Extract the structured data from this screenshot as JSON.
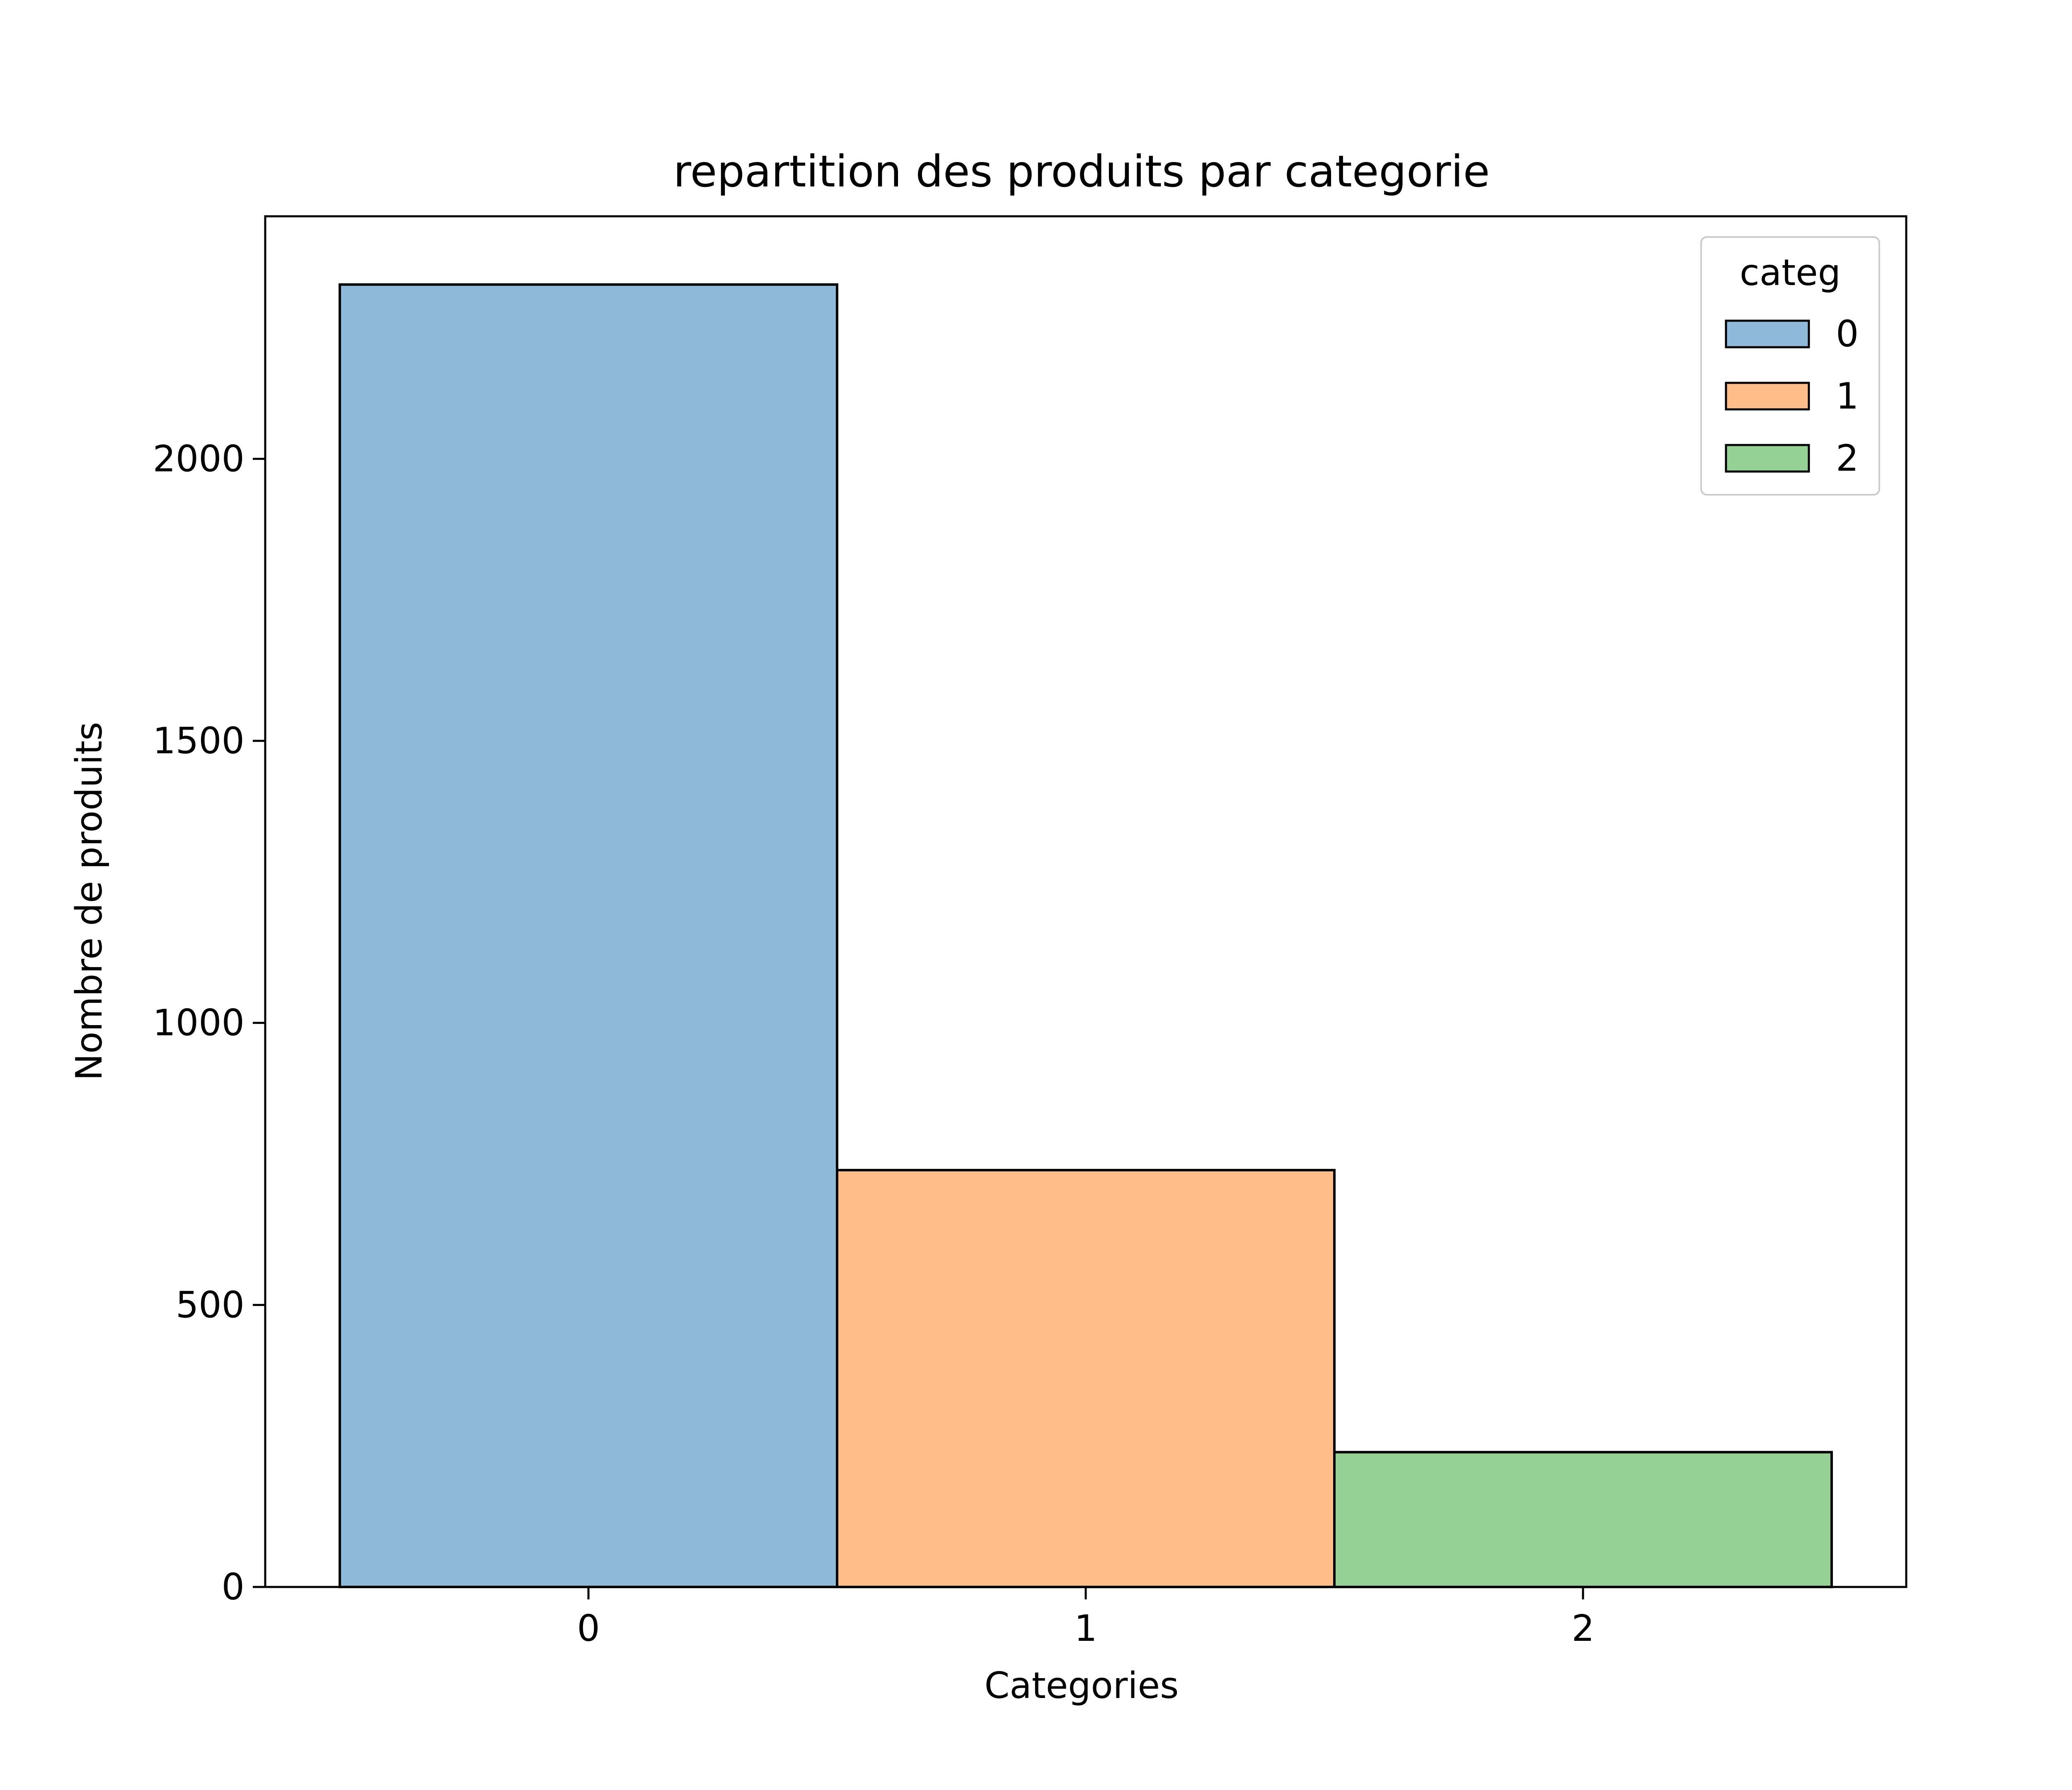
{
  "chart_data": {
    "type": "bar",
    "title": "repartition des produits par categorie",
    "xlabel": "Categories",
    "ylabel": "Nombre de produits",
    "categories": [
      "0",
      "1",
      "2"
    ],
    "values": [
      2309,
      739,
      239
    ],
    "colors": [
      "#8fb9d9",
      "#ffbe89",
      "#95d095"
    ],
    "edge_color": "#000000",
    "ylim": [
      0,
      2430
    ],
    "xlim": [
      -0.65,
      2.65
    ],
    "yticks": [
      0,
      500,
      1000,
      1500,
      2000
    ],
    "ytick_labels": [
      "0",
      "500",
      "1000",
      "1500",
      "2000"
    ],
    "xticks": [
      0,
      1,
      2
    ],
    "xtick_labels": [
      "0",
      "1",
      "2"
    ],
    "grid": false,
    "legend": {
      "title": "categ",
      "position": "top-right",
      "entries": [
        "0",
        "1",
        "2"
      ]
    }
  }
}
